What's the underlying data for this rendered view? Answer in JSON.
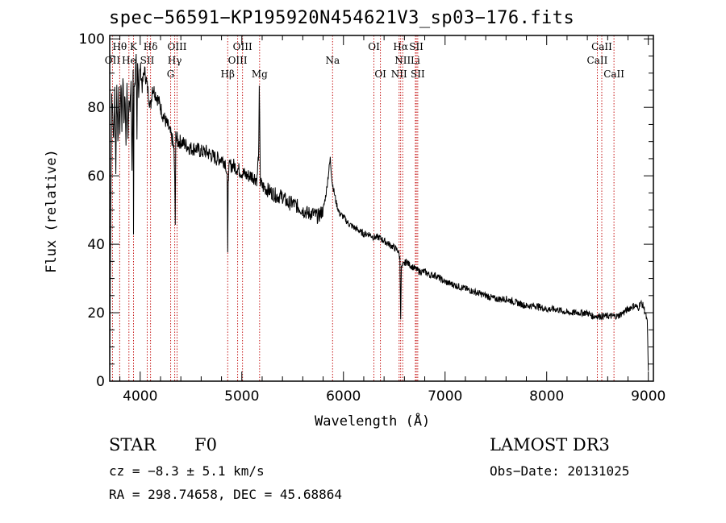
{
  "chart_data": {
    "type": "line",
    "title": "spec−56591−KP195920N454621V3_sp03−176.fits",
    "xlabel": "Wavelength (Å)",
    "ylabel": "Flux (relative)",
    "xlim": [
      3700,
      9050
    ],
    "ylim": [
      0,
      101
    ],
    "xticks": [
      4000,
      5000,
      6000,
      7000,
      8000,
      9000
    ],
    "yticks": [
      0,
      20,
      40,
      60,
      80,
      100
    ],
    "series": [
      {
        "name": "flux",
        "x": [
          3700,
          3710,
          3720,
          3730,
          3740,
          3750,
          3760,
          3770,
          3780,
          3790,
          3800,
          3810,
          3820,
          3830,
          3840,
          3850,
          3860,
          3870,
          3880,
          3890,
          3900,
          3910,
          3920,
          3930,
          3934,
          3940,
          3950,
          3960,
          3968,
          3975,
          3985,
          4000,
          4020,
          4040,
          4060,
          4080,
          4102,
          4120,
          4150,
          4180,
          4200,
          4220,
          4250,
          4280,
          4300,
          4320,
          4330,
          4340,
          4345,
          4350,
          4370,
          4400,
          4450,
          4500,
          4550,
          4600,
          4650,
          4700,
          4750,
          4800,
          4840,
          4855,
          4861,
          4866,
          4880,
          4920,
          4960,
          5000,
          5050,
          5100,
          5150,
          5167,
          5172,
          5183,
          5200,
          5250,
          5300,
          5350,
          5400,
          5450,
          5500,
          5550,
          5600,
          5650,
          5700,
          5750,
          5800,
          5830,
          5850,
          5870,
          5890,
          5896,
          5910,
          5930,
          5960,
          6000,
          6050,
          6100,
          6150,
          6200,
          6250,
          6300,
          6350,
          6400,
          6450,
          6500,
          6540,
          6555,
          6563,
          6570,
          6590,
          6620,
          6650,
          6700,
          6750,
          6800,
          6850,
          6900,
          6950,
          7000,
          7100,
          7200,
          7300,
          7400,
          7500,
          7600,
          7700,
          7800,
          7900,
          8000,
          8100,
          8200,
          8300,
          8400,
          8450,
          8500,
          8542,
          8600,
          8662,
          8700,
          8750,
          8800,
          8850,
          8880,
          8900,
          8920,
          8950,
          8970,
          8990,
          9000
        ],
        "values": [
          1,
          50,
          84,
          77,
          70,
          86,
          62,
          88,
          68,
          84,
          72,
          88,
          74,
          90,
          76,
          84,
          70,
          86,
          72,
          84,
          78,
          88,
          60,
          92,
          44,
          88,
          85,
          94,
          70,
          95,
          84,
          92,
          86,
          91,
          88,
          84,
          80,
          86,
          84,
          82,
          80,
          78,
          76,
          74,
          72,
          70,
          68,
          60,
          44,
          72,
          70,
          70,
          69,
          68,
          68,
          67,
          67,
          66,
          65,
          65,
          64,
          60,
          36,
          60,
          63,
          63,
          62,
          61,
          60,
          60,
          59,
          68,
          85,
          58,
          57,
          56,
          55,
          54,
          54,
          52,
          52,
          51,
          50,
          49,
          49,
          48,
          50,
          55,
          60,
          65,
          58,
          57,
          55,
          52,
          49,
          48,
          46,
          45,
          44,
          43,
          43,
          42,
          42,
          41,
          40,
          39,
          38,
          36,
          19,
          33,
          34,
          35,
          34,
          33,
          32,
          32,
          31,
          31,
          30,
          29,
          28,
          27,
          26,
          25,
          24,
          24,
          23,
          22,
          22,
          21,
          21,
          20,
          20,
          20,
          19,
          19,
          19,
          19,
          19,
          19,
          20,
          21,
          22,
          22,
          21,
          23,
          22,
          20,
          17,
          3
        ]
      }
    ],
    "lines": [
      {
        "name": "Hθ",
        "wavelength": 3798,
        "row": 0
      },
      {
        "name": "K",
        "wavelength": 3934,
        "row": 0
      },
      {
        "name": "Hδ",
        "wavelength": 4102,
        "row": 0
      },
      {
        "name": "OII",
        "wavelength": 3727,
        "row": 1
      },
      {
        "name": "He",
        "wavelength": 3889,
        "row": 1
      },
      {
        "name": "SII",
        "wavelength": 4069,
        "row": 1
      },
      {
        "name": "OIII",
        "wavelength": 4363,
        "row": 0
      },
      {
        "name": "Hγ",
        "wavelength": 4340,
        "row": 1
      },
      {
        "name": "G",
        "wavelength": 4300,
        "row": 2
      },
      {
        "name": "OIII",
        "wavelength": 5007,
        "row": 0
      },
      {
        "name": "OIII",
        "wavelength": 4959,
        "row": 1
      },
      {
        "name": "Hβ",
        "wavelength": 4861,
        "row": 2
      },
      {
        "name": "Mg",
        "wavelength": 5175,
        "row": 2
      },
      {
        "name": "Na",
        "wavelength": 5893,
        "row": 1
      },
      {
        "name": "OI",
        "wavelength": 6300,
        "row": 0
      },
      {
        "name": "OI",
        "wavelength": 6364,
        "row": 2
      },
      {
        "name": "Hα",
        "wavelength": 6563,
        "row": 0
      },
      {
        "name": "SII",
        "wavelength": 6717,
        "row": 0
      },
      {
        "name": "NII",
        "wavelength": 6583,
        "row": 1
      },
      {
        "name": "Li",
        "wavelength": 6708,
        "row": 1
      },
      {
        "name": "NII",
        "wavelength": 6548,
        "row": 2
      },
      {
        "name": "SII",
        "wavelength": 6731,
        "row": 2
      },
      {
        "name": "CaII",
        "wavelength": 8542,
        "row": 0
      },
      {
        "name": "CaII",
        "wavelength": 8498,
        "row": 1
      },
      {
        "name": "CaII",
        "wavelength": 8662,
        "row": 2
      }
    ]
  },
  "info": {
    "class": "STAR",
    "subclass": "F0",
    "survey": "LAMOST DR3",
    "cz": "cz = −8.3 ± 5.1 km/s",
    "obs_date": "Obs−Date: 20131025",
    "coords": "RA = 298.74658, DEC =  45.68864"
  },
  "colors": {
    "line_marker": "#c00000",
    "spectrum": "#000000",
    "axes": "#000000"
  }
}
